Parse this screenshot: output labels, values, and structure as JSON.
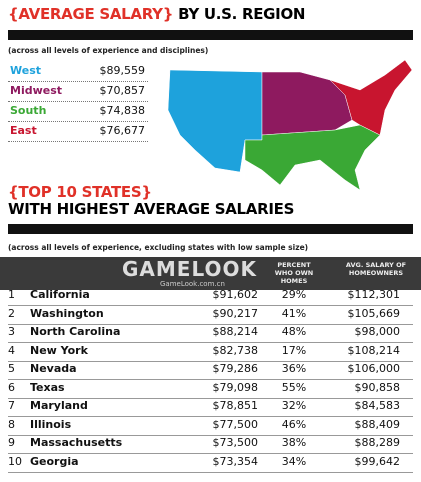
{
  "header": {
    "title_bracket": "{AVERAGE SALARY}",
    "title_rest": "BY U.S. REGION",
    "subtitle": "(across all levels of experience and disciplines)"
  },
  "regions": [
    {
      "name": "West",
      "value": "$89,559",
      "color": "#1ea2dc"
    },
    {
      "name": "Midwest",
      "value": "$70,857",
      "color": "#8e1a5f"
    },
    {
      "name": "South",
      "value": "$74,838",
      "color": "#3aa835"
    },
    {
      "name": "East",
      "value": "$76,677",
      "color": "#c8152f"
    }
  ],
  "section": {
    "title_bracket": "{TOP 10 STATES}",
    "title_rest": "WITH HIGHEST AVERAGE SALARIES",
    "subtitle": "(across all levels of experience, excluding states with low sample size)"
  },
  "watermark": {
    "logo": "GAMELOOK",
    "url": "GameLook.com.cn"
  },
  "table": {
    "columns": [
      "PERCENT WHO OWN HOMES",
      "AVG. SALARY OF HOMEOWNERS"
    ],
    "rows": [
      [
        1,
        "California",
        "$91,602",
        "29%",
        "$112,301"
      ],
      [
        2,
        "Washington",
        "$90,217",
        "41%",
        "$105,669"
      ],
      [
        3,
        "North Carolina",
        "$88,214",
        "48%",
        "$98,000"
      ],
      [
        4,
        "New York",
        "$82,738",
        "17%",
        "$108,214"
      ],
      [
        5,
        "Nevada",
        "$79,286",
        "36%",
        "$106,000"
      ],
      [
        6,
        "Texas",
        "$79,098",
        "55%",
        "$90,858"
      ],
      [
        7,
        "Maryland",
        "$78,851",
        "32%",
        "$84,583"
      ],
      [
        8,
        "Illinois",
        "$77,500",
        "46%",
        "$88,409"
      ],
      [
        9,
        "Massachusetts",
        "$73,500",
        "38%",
        "$88,289"
      ],
      [
        10,
        "Georgia",
        "$73,354",
        "34%",
        "$99,642"
      ]
    ]
  }
}
